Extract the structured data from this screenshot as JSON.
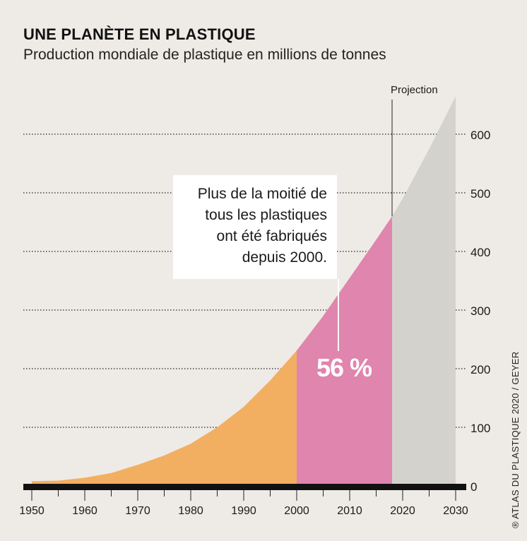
{
  "title": "UNE PLANÈTE EN PLASTIQUE",
  "subtitle": "Production mondiale de plastique en millions de tonnes",
  "credit": "® ATLAS DU PLASTIQUE 2020 / GEYER",
  "annotation": {
    "text": "Plus de la moitié de\ntous les plastiques\nont été fabriqués\ndepuis 2000.",
    "value": "56 %"
  },
  "projection_label": "Projection",
  "colors": {
    "background": "#eeebe6",
    "before_2000": "#f2af62",
    "2000_to_2018": "#e085ad",
    "projection": "#d4d2cd",
    "axis": "#111111"
  },
  "chart_data": {
    "type": "area",
    "xlabel": "",
    "ylabel": "",
    "xlim": [
      1949,
      2031
    ],
    "ylim": [
      0,
      600
    ],
    "x_ticks": [
      1950,
      1960,
      1970,
      1980,
      1990,
      2000,
      2010,
      2020,
      2030
    ],
    "y_ticks": [
      0,
      100,
      200,
      300,
      400,
      500,
      600
    ],
    "grid": "dotted horizontal",
    "segments": [
      {
        "from": 1950,
        "to": 2000,
        "color_key": "before_2000"
      },
      {
        "from": 2000,
        "to": 2018,
        "color_key": "2000_to_2018"
      },
      {
        "from": 2018,
        "to": 2030,
        "color_key": "projection",
        "label": "Projection"
      }
    ],
    "x": [
      1950,
      1955,
      1960,
      1965,
      1970,
      1975,
      1980,
      1985,
      1990,
      1995,
      2000,
      2005,
      2010,
      2015,
      2018,
      2020,
      2025,
      2030
    ],
    "values": [
      8,
      9,
      14,
      22,
      36,
      52,
      72,
      100,
      135,
      180,
      231,
      290,
      355,
      420,
      460,
      490,
      575,
      665
    ]
  }
}
